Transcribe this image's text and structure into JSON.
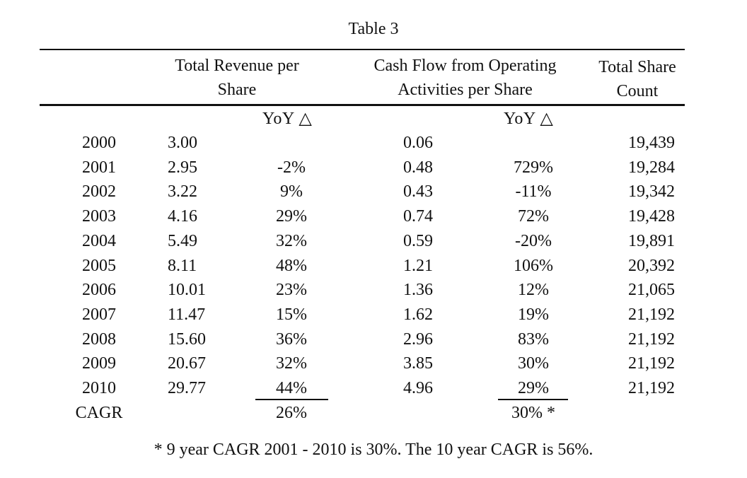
{
  "title": "Table 3",
  "headers": {
    "revenue": [
      "Total Revenue per",
      "Share"
    ],
    "cashflow": [
      "Cash Flow from Operating",
      "Activities per Share"
    ],
    "shares": [
      "Total Share",
      "Count"
    ]
  },
  "subheaders": {
    "revenue_yoy": "YoY △",
    "cashflow_yoy": "YoY △"
  },
  "rows": [
    {
      "year": "2000",
      "rev": "3.00",
      "rev_yoy": "",
      "cf": "0.06",
      "cf_yoy": "",
      "shares": "19,439"
    },
    {
      "year": "2001",
      "rev": "2.95",
      "rev_yoy": "-2%",
      "cf": "0.48",
      "cf_yoy": "729%",
      "shares": "19,284"
    },
    {
      "year": "2002",
      "rev": "3.22",
      "rev_yoy": "9%",
      "cf": "0.43",
      "cf_yoy": "-11%",
      "shares": "19,342"
    },
    {
      "year": "2003",
      "rev": "4.16",
      "rev_yoy": "29%",
      "cf": "0.74",
      "cf_yoy": "72%",
      "shares": "19,428"
    },
    {
      "year": "2004",
      "rev": "5.49",
      "rev_yoy": "32%",
      "cf": "0.59",
      "cf_yoy": "-20%",
      "shares": "19,891"
    },
    {
      "year": "2005",
      "rev": "8.11",
      "rev_yoy": "48%",
      "cf": "1.21",
      "cf_yoy": "106%",
      "shares": "20,392"
    },
    {
      "year": "2006",
      "rev": "10.01",
      "rev_yoy": "23%",
      "cf": "1.36",
      "cf_yoy": "12%",
      "shares": "21,065"
    },
    {
      "year": "2007",
      "rev": "11.47",
      "rev_yoy": "15%",
      "cf": "1.62",
      "cf_yoy": "19%",
      "shares": "21,192"
    },
    {
      "year": "2008",
      "rev": "15.60",
      "rev_yoy": "36%",
      "cf": "2.96",
      "cf_yoy": "83%",
      "shares": "21,192"
    },
    {
      "year": "2009",
      "rev": "20.67",
      "rev_yoy": "32%",
      "cf": "3.85",
      "cf_yoy": "30%",
      "shares": "21,192"
    },
    {
      "year": "2010",
      "rev": "29.77",
      "rev_yoy": "44%",
      "cf": "4.96",
      "cf_yoy": "29%",
      "shares": "21,192"
    }
  ],
  "cagr": {
    "label": "CAGR",
    "rev": "26%",
    "cf": "30% *"
  },
  "footnote": "* 9 year CAGR 2001 - 2010 is 30%.  The 10 year CAGR is 56%."
}
